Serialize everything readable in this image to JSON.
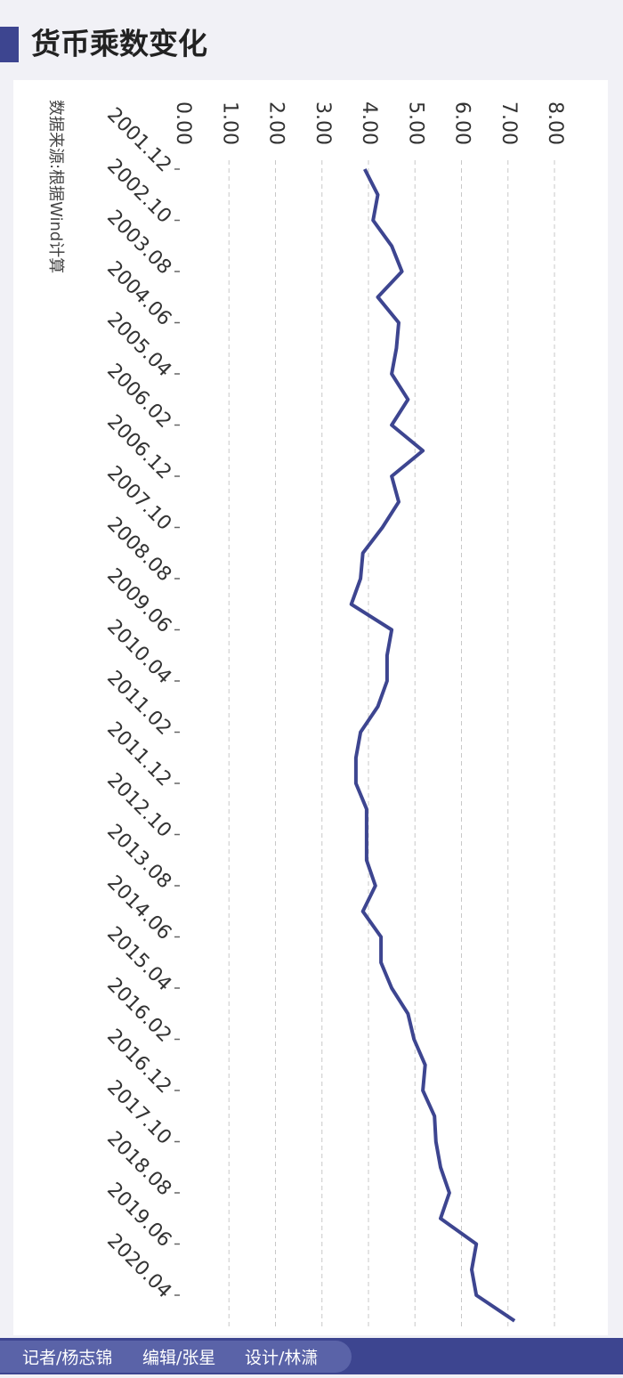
{
  "chart_data": {
    "type": "line",
    "title": "货币乘数变化",
    "source": "数据来源:根据Wind计算",
    "categories": [
      "2001.12",
      null,
      "2002.10",
      null,
      "2003.08",
      null,
      "2004.06",
      null,
      "2005.04",
      null,
      "2006.02",
      null,
      "2006.12",
      null,
      "2007.10",
      null,
      "2008.08",
      null,
      "2009.06",
      null,
      "2010.04",
      null,
      "2011.02",
      null,
      "2011.12",
      null,
      "2012.10",
      null,
      "2013.08",
      null,
      "2014.06",
      null,
      "2015.04",
      null,
      "2016.02",
      null,
      "2016.12",
      null,
      "2017.10",
      null,
      "2018.08",
      null,
      "2019.06",
      null,
      "2020.04",
      null
    ],
    "values": [
      3.92,
      4.2,
      4.1,
      4.5,
      4.72,
      4.2,
      4.65,
      4.6,
      4.5,
      4.85,
      4.5,
      5.17,
      4.5,
      4.65,
      4.3,
      3.88,
      3.83,
      3.63,
      4.5,
      4.4,
      4.4,
      4.2,
      3.83,
      3.73,
      3.73,
      3.96,
      3.96,
      3.96,
      4.15,
      3.88,
      4.27,
      4.27,
      4.5,
      4.85,
      4.98,
      5.22,
      5.17,
      5.42,
      5.45,
      5.55,
      5.74,
      5.55,
      6.32,
      6.22,
      6.32,
      7.14
    ],
    "color": "#3d4590",
    "ylim": [
      0,
      8
    ],
    "yticks": [
      {
        "value": 0,
        "label": "0.00"
      },
      {
        "value": 1,
        "label": "1.00"
      },
      {
        "value": 2,
        "label": "2.00"
      },
      {
        "value": 3,
        "label": "3.00"
      },
      {
        "value": 4,
        "label": "4.00"
      },
      {
        "value": 5,
        "label": "5.00"
      },
      {
        "value": 6,
        "label": "6.00"
      },
      {
        "value": 7,
        "label": "7.00"
      },
      {
        "value": 8,
        "label": "8.00"
      }
    ],
    "grid": true
  },
  "footer": {
    "reporter": "记者/杨志锦",
    "editor": "编辑/张星",
    "designer": "设计/林潇"
  }
}
